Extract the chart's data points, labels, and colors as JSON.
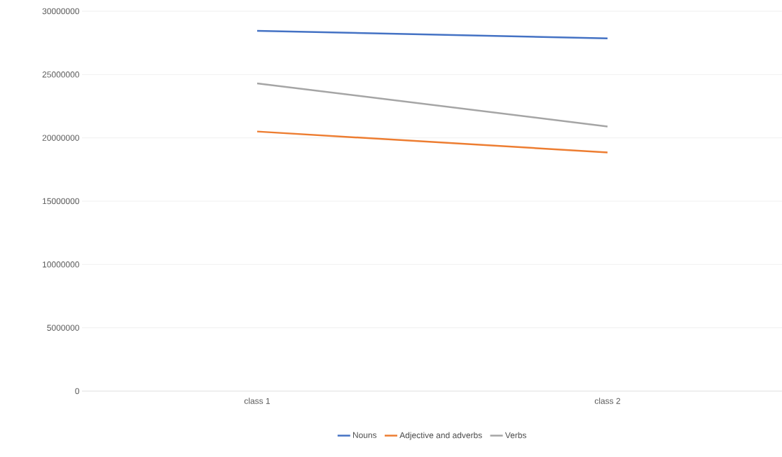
{
  "chart_data": {
    "type": "line",
    "categories": [
      "class 1",
      "class 2"
    ],
    "series": [
      {
        "name": "Nouns",
        "color": "#4472c4",
        "values": [
          28450000,
          27850000
        ]
      },
      {
        "name": "Adjective and adverbs",
        "color": "#ed7d31",
        "values": [
          20500000,
          18850000
        ]
      },
      {
        "name": "Verbs",
        "color": "#a5a5a5",
        "values": [
          24300000,
          20900000
        ]
      }
    ],
    "ylim": [
      0,
      30000000
    ],
    "yticks": [
      0,
      5000000,
      10000000,
      15000000,
      20000000,
      25000000,
      30000000
    ],
    "grid": "y",
    "legend": "bottom",
    "marker": "none",
    "line_style": "solid"
  }
}
